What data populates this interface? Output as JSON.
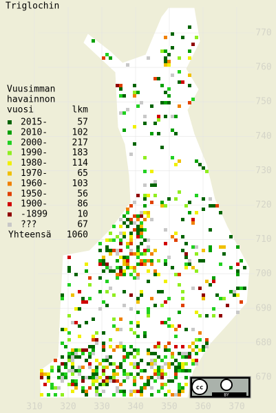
{
  "map": {
    "title": "Triglochin",
    "legend_header": [
      "Vuusimman",
      "havainnon",
      "vuosi"
    ],
    "count_header": "lkm",
    "legend": [
      {
        "label": "2015-",
        "count": 57,
        "color": "#006400"
      },
      {
        "label": "2010-",
        "count": 102,
        "color": "#00a000"
      },
      {
        "label": "2000-",
        "count": 217,
        "color": "#20d020"
      },
      {
        "label": "1990-",
        "count": 183,
        "color": "#90ee20"
      },
      {
        "label": "1980-",
        "count": 114,
        "color": "#f0f000"
      },
      {
        "label": "1970-",
        "count": 65,
        "color": "#f0c000"
      },
      {
        "label": "1960-",
        "count": 103,
        "color": "#f08000"
      },
      {
        "label": "1950-",
        "count": 56,
        "color": "#e04000"
      },
      {
        "label": "1900-",
        "count": 86,
        "color": "#d00000"
      },
      {
        "label": "-1899",
        "count": 10,
        "color": "#900000"
      },
      {
        "label": "???",
        "count": 67,
        "color": "#c8c8c8"
      }
    ],
    "total_label": "Yhteensä",
    "total": 1060,
    "xticks": [
      310,
      320,
      330,
      340,
      350,
      360,
      370
    ],
    "yticks": [
      670,
      680,
      690,
      700,
      710,
      720,
      730,
      740,
      750,
      760,
      770
    ]
  }
}
